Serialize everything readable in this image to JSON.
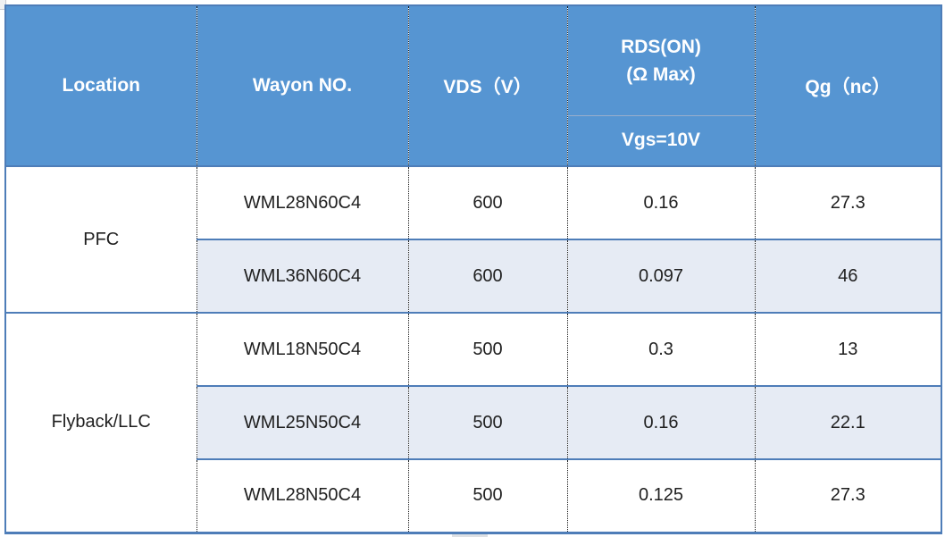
{
  "table": {
    "header": {
      "location": "Location",
      "wayon_no": "Wayon NO.",
      "vds": "VDS（V）",
      "rds_line1": "RDS(ON)",
      "rds_line2": "(Ω Max)",
      "rds_condition": "Vgs=10V",
      "qg": "Qg（nc）"
    },
    "groups": [
      {
        "location": "PFC",
        "rows": [
          {
            "part": "WML28N60C4",
            "vds": "600",
            "rds": "0.16",
            "qg": "27.3"
          },
          {
            "part": "WML36N60C4",
            "vds": "600",
            "rds": "0.097",
            "qg": "46"
          }
        ]
      },
      {
        "location": "Flyback/LLC",
        "rows": [
          {
            "part": "WML18N50C4",
            "vds": "500",
            "rds": "0.3",
            "qg": "13"
          },
          {
            "part": "WML25N50C4",
            "vds": "500",
            "rds": "0.16",
            "qg": "22.1"
          },
          {
            "part": "WML28N50C4",
            "vds": "500",
            "rds": "0.125",
            "qg": "27.3"
          }
        ]
      }
    ],
    "colors": {
      "header_bg": "#5695D2",
      "header_text": "#FFFFFF",
      "band_bg": "#E6EBF4",
      "row_bg": "#FFFFFF",
      "border_blue": "#4E7DB8",
      "divider_light": "#98AECB",
      "dotted_line": "#1A1A1A",
      "cell_text": "#1F1F1F"
    }
  }
}
